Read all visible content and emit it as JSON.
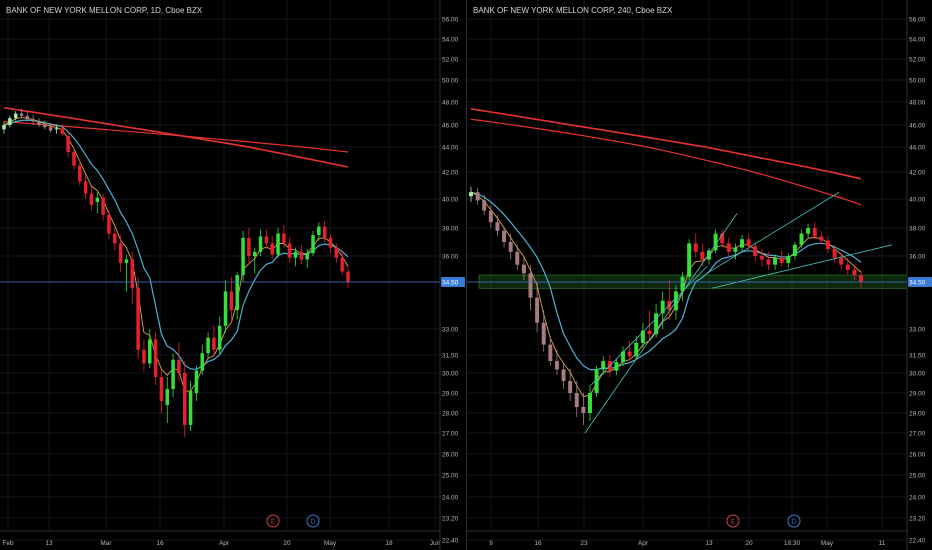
{
  "colors": {
    "background": "#000000",
    "grid": "#1b1e26",
    "up_candle": "#35e03a",
    "up_candle_light": "#a6e8a8",
    "down_candle": "#e8202a",
    "down_candle_light": "#a87b80",
    "sma_200": "#e8322e",
    "sma_100": "#e8322e",
    "ema_fast": "#d6a750",
    "ema_slow": "#4fb0d2",
    "trendline": "#46c6bb",
    "support_zone": "#2f8c34",
    "price_line": "#3a7bd5",
    "price_tag": "#3a7bd5",
    "earnings_badge": "#d04545",
    "dividend_badge": "#3a7bd5"
  },
  "chart_data": [
    {
      "type": "candlestick",
      "title": "BANK OF NEW YORK MELLON CORP, 1D, Cboe BZX",
      "y_ticks": [
        "56.00",
        "54.00",
        "52.00",
        "50.00",
        "48.00",
        "46.00",
        "44.00",
        "42.00",
        "40.00",
        "38.00",
        "36.00",
        "34.50",
        "33.00",
        "31.50",
        "30.00",
        "29.00",
        "28.00",
        "27.00",
        "26.00",
        "25.00",
        "24.00",
        "23.20",
        "22.40"
      ],
      "x_ticks": [
        "Feb",
        "13",
        "Mar",
        "16",
        "Apr",
        "20",
        "May",
        "18",
        "Jun"
      ],
      "ylim": [
        22.4,
        56
      ],
      "last_price": "34.50",
      "events": [
        "E",
        "D"
      ],
      "ohlc": [
        [
          0,
          45.6,
          46.3,
          45.2,
          46.0
        ],
        [
          1,
          46.0,
          46.8,
          45.8,
          46.6
        ],
        [
          2,
          46.6,
          47.2,
          46.4,
          47.0
        ],
        [
          3,
          47.0,
          47.4,
          46.6,
          46.8
        ],
        [
          4,
          46.8,
          47.2,
          46.3,
          46.5
        ],
        [
          5,
          46.5,
          46.9,
          46.0,
          46.3
        ],
        [
          6,
          46.3,
          46.6,
          45.8,
          46.0
        ],
        [
          7,
          46.0,
          46.4,
          45.6,
          45.8
        ],
        [
          8,
          45.8,
          46.2,
          45.3,
          45.5
        ],
        [
          9,
          45.6,
          46.0,
          45.2,
          45.7
        ],
        [
          10,
          45.7,
          46.1,
          45.0,
          45.2
        ],
        [
          11,
          45.0,
          45.4,
          43.2,
          43.6
        ],
        [
          12,
          43.6,
          43.9,
          42.2,
          42.5
        ],
        [
          13,
          42.5,
          43.0,
          41.0,
          41.3
        ],
        [
          14,
          41.3,
          41.8,
          40.0,
          40.4
        ],
        [
          15,
          40.4,
          40.9,
          39.2,
          39.6
        ],
        [
          16,
          39.8,
          40.5,
          39.0,
          40.1
        ],
        [
          17,
          40.1,
          40.4,
          38.5,
          38.9
        ],
        [
          18,
          38.9,
          39.2,
          37.2,
          37.6
        ],
        [
          19,
          37.6,
          38.0,
          36.4,
          36.9
        ],
        [
          20,
          36.9,
          37.5,
          35.1,
          35.6
        ],
        [
          21,
          35.6,
          36.1,
          34.2,
          35.8
        ],
        [
          22,
          35.8,
          36.3,
          33.8,
          34.3
        ],
        [
          23,
          34.3,
          34.8,
          31.2,
          31.8
        ],
        [
          24,
          31.8,
          32.4,
          30.1,
          30.8
        ],
        [
          25,
          30.8,
          33.0,
          30.4,
          32.4
        ],
        [
          26,
          32.4,
          32.8,
          29.4,
          29.8
        ],
        [
          27,
          29.8,
          30.3,
          28.0,
          28.6
        ],
        [
          28,
          28.4,
          29.8,
          27.5,
          29.2
        ],
        [
          29,
          29.2,
          31.6,
          28.8,
          31.1
        ],
        [
          30,
          31.1,
          32.2,
          29.6,
          30.0
        ],
        [
          31,
          30.0,
          31.0,
          26.8,
          27.4
        ],
        [
          32,
          27.4,
          29.6,
          27.1,
          29.1
        ],
        [
          33,
          29.0,
          30.6,
          28.6,
          30.2
        ],
        [
          34,
          30.2,
          32.1,
          29.9,
          31.6
        ],
        [
          35,
          31.6,
          32.8,
          31.2,
          32.5
        ],
        [
          36,
          32.5,
          33.1,
          31.4,
          31.8
        ],
        [
          37,
          31.8,
          33.4,
          31.5,
          33.1
        ],
        [
          38,
          33.1,
          34.6,
          32.8,
          34.2
        ],
        [
          39,
          34.2,
          34.8,
          33.2,
          33.6
        ],
        [
          40,
          33.6,
          35.1,
          33.3,
          34.9
        ],
        [
          41,
          34.9,
          37.8,
          34.5,
          37.3
        ],
        [
          42,
          37.3,
          38.0,
          35.5,
          36.0
        ],
        [
          43,
          36.0,
          36.6,
          35.0,
          36.3
        ],
        [
          44,
          36.3,
          37.9,
          36.0,
          37.4
        ],
        [
          45,
          37.4,
          37.9,
          36.5,
          36.9
        ],
        [
          46,
          36.9,
          37.4,
          35.8,
          36.1
        ],
        [
          47,
          36.1,
          38.0,
          35.9,
          37.6
        ],
        [
          48,
          37.6,
          38.2,
          36.6,
          36.9
        ],
        [
          49,
          36.9,
          37.3,
          35.6,
          35.9
        ],
        [
          50,
          35.9,
          36.6,
          35.4,
          36.3
        ],
        [
          51,
          36.3,
          36.8,
          35.5,
          35.8
        ],
        [
          52,
          35.8,
          36.5,
          35.3,
          36.2
        ],
        [
          53,
          36.2,
          37.8,
          36.0,
          37.5
        ],
        [
          54,
          37.5,
          38.4,
          37.1,
          38.1
        ],
        [
          55,
          38.1,
          38.5,
          37.0,
          37.3
        ],
        [
          56,
          37.3,
          37.6,
          36.2,
          36.6
        ],
        [
          57,
          36.6,
          36.9,
          35.6,
          35.9
        ],
        [
          58,
          35.9,
          36.4,
          34.9,
          35.1
        ],
        [
          59,
          35.1,
          35.5,
          34.3,
          34.5
        ]
      ]
    },
    {
      "type": "candlestick",
      "title": "BANK OF NEW YORK MELLON CORP, 240, Cboe BZX",
      "y_ticks": [
        "56.00",
        "54.00",
        "52.00",
        "50.00",
        "48.00",
        "46.00",
        "44.00",
        "42.00",
        "40.00",
        "38.00",
        "36.00",
        "34.50",
        "33.00",
        "31.50",
        "30.00",
        "29.00",
        "28.00",
        "27.00",
        "26.00",
        "25.00",
        "24.00",
        "23.20",
        "22.40"
      ],
      "x_ticks": [
        "9",
        "16",
        "23",
        "Apr",
        "13",
        "20",
        "18:30",
        "May",
        "11"
      ],
      "ylim": [
        22.4,
        56
      ],
      "last_price": "34.50",
      "events": [
        "E",
        "D"
      ],
      "ohlc": [
        [
          0,
          40.2,
          40.9,
          39.8,
          40.5
        ],
        [
          1,
          40.5,
          40.8,
          39.6,
          39.9
        ],
        [
          2,
          39.9,
          40.3,
          38.9,
          39.2
        ],
        [
          3,
          39.2,
          39.6,
          38.0,
          38.4
        ],
        [
          4,
          38.4,
          38.9,
          37.4,
          37.8
        ],
        [
          5,
          37.8,
          38.1,
          36.6,
          37.0
        ],
        [
          6,
          37.0,
          37.6,
          35.8,
          36.3
        ],
        [
          7,
          36.3,
          36.8,
          35.2,
          35.5
        ],
        [
          8,
          35.5,
          36.0,
          34.6,
          35.0
        ],
        [
          9,
          35.0,
          35.5,
          33.6,
          34.0
        ],
        [
          10,
          34.0,
          34.5,
          32.8,
          33.2
        ],
        [
          11,
          33.2,
          33.6,
          31.7,
          32.1
        ],
        [
          12,
          32.1,
          32.6,
          30.6,
          31.0
        ],
        [
          13,
          31.0,
          31.8,
          29.9,
          30.3
        ],
        [
          14,
          30.3,
          30.9,
          29.2,
          29.6
        ],
        [
          15,
          29.6,
          30.4,
          28.6,
          29.0
        ],
        [
          16,
          29.0,
          29.6,
          27.8,
          28.3
        ],
        [
          17,
          28.3,
          29.0,
          27.4,
          28.0
        ],
        [
          18,
          28.0,
          29.4,
          27.6,
          29.0
        ],
        [
          19,
          29.0,
          30.6,
          28.8,
          30.3
        ],
        [
          20,
          30.3,
          31.4,
          29.9,
          31.0
        ],
        [
          21,
          31.0,
          31.5,
          29.8,
          30.2
        ],
        [
          22,
          30.2,
          31.2,
          29.9,
          30.9
        ],
        [
          23,
          30.9,
          32.0,
          30.6,
          31.7
        ],
        [
          24,
          31.7,
          32.3,
          31.0,
          31.4
        ],
        [
          25,
          31.4,
          32.6,
          31.1,
          32.2
        ],
        [
          26,
          32.2,
          33.2,
          31.9,
          32.9
        ],
        [
          27,
          32.9,
          33.6,
          32.3,
          32.7
        ],
        [
          28,
          32.7,
          33.8,
          32.5,
          33.5
        ],
        [
          29,
          33.5,
          34.2,
          33.0,
          33.9
        ],
        [
          30,
          33.9,
          34.6,
          33.3,
          33.6
        ],
        [
          31,
          33.6,
          34.4,
          33.3,
          34.2
        ],
        [
          32,
          34.2,
          35.1,
          33.9,
          34.8
        ],
        [
          33,
          34.8,
          37.2,
          34.6,
          36.9
        ],
        [
          34,
          36.9,
          37.6,
          35.9,
          36.3
        ],
        [
          35,
          36.3,
          36.9,
          35.4,
          35.8
        ],
        [
          36,
          35.8,
          36.6,
          35.5,
          36.4
        ],
        [
          37,
          36.4,
          37.9,
          36.2,
          37.6
        ],
        [
          38,
          37.6,
          37.9,
          36.6,
          36.9
        ],
        [
          39,
          36.9,
          37.3,
          35.9,
          36.3
        ],
        [
          40,
          36.3,
          36.9,
          35.8,
          36.6
        ],
        [
          41,
          36.6,
          37.5,
          36.3,
          37.2
        ],
        [
          42,
          37.2,
          37.6,
          36.4,
          36.7
        ],
        [
          43,
          36.7,
          37.0,
          35.7,
          36.0
        ],
        [
          44,
          36.0,
          36.5,
          35.4,
          35.8
        ],
        [
          45,
          35.8,
          36.3,
          35.2,
          35.5
        ],
        [
          46,
          35.5,
          36.1,
          35.2,
          35.9
        ],
        [
          47,
          35.9,
          36.4,
          35.4,
          35.6
        ],
        [
          48,
          35.6,
          36.2,
          35.3,
          36.0
        ],
        [
          49,
          36.0,
          37.0,
          35.8,
          36.8
        ],
        [
          50,
          36.8,
          37.9,
          36.6,
          37.6
        ],
        [
          51,
          37.6,
          38.3,
          37.3,
          38.0
        ],
        [
          52,
          38.0,
          38.4,
          37.2,
          37.4
        ],
        [
          53,
          37.4,
          37.8,
          36.8,
          37.1
        ],
        [
          54,
          37.1,
          37.4,
          36.2,
          36.5
        ],
        [
          55,
          36.5,
          36.8,
          35.6,
          35.9
        ],
        [
          56,
          35.9,
          36.2,
          35.2,
          35.5
        ],
        [
          57,
          35.5,
          35.9,
          34.9,
          35.2
        ],
        [
          58,
          35.2,
          35.5,
          34.6,
          34.9
        ],
        [
          59,
          34.9,
          35.2,
          34.3,
          34.5
        ]
      ]
    }
  ]
}
